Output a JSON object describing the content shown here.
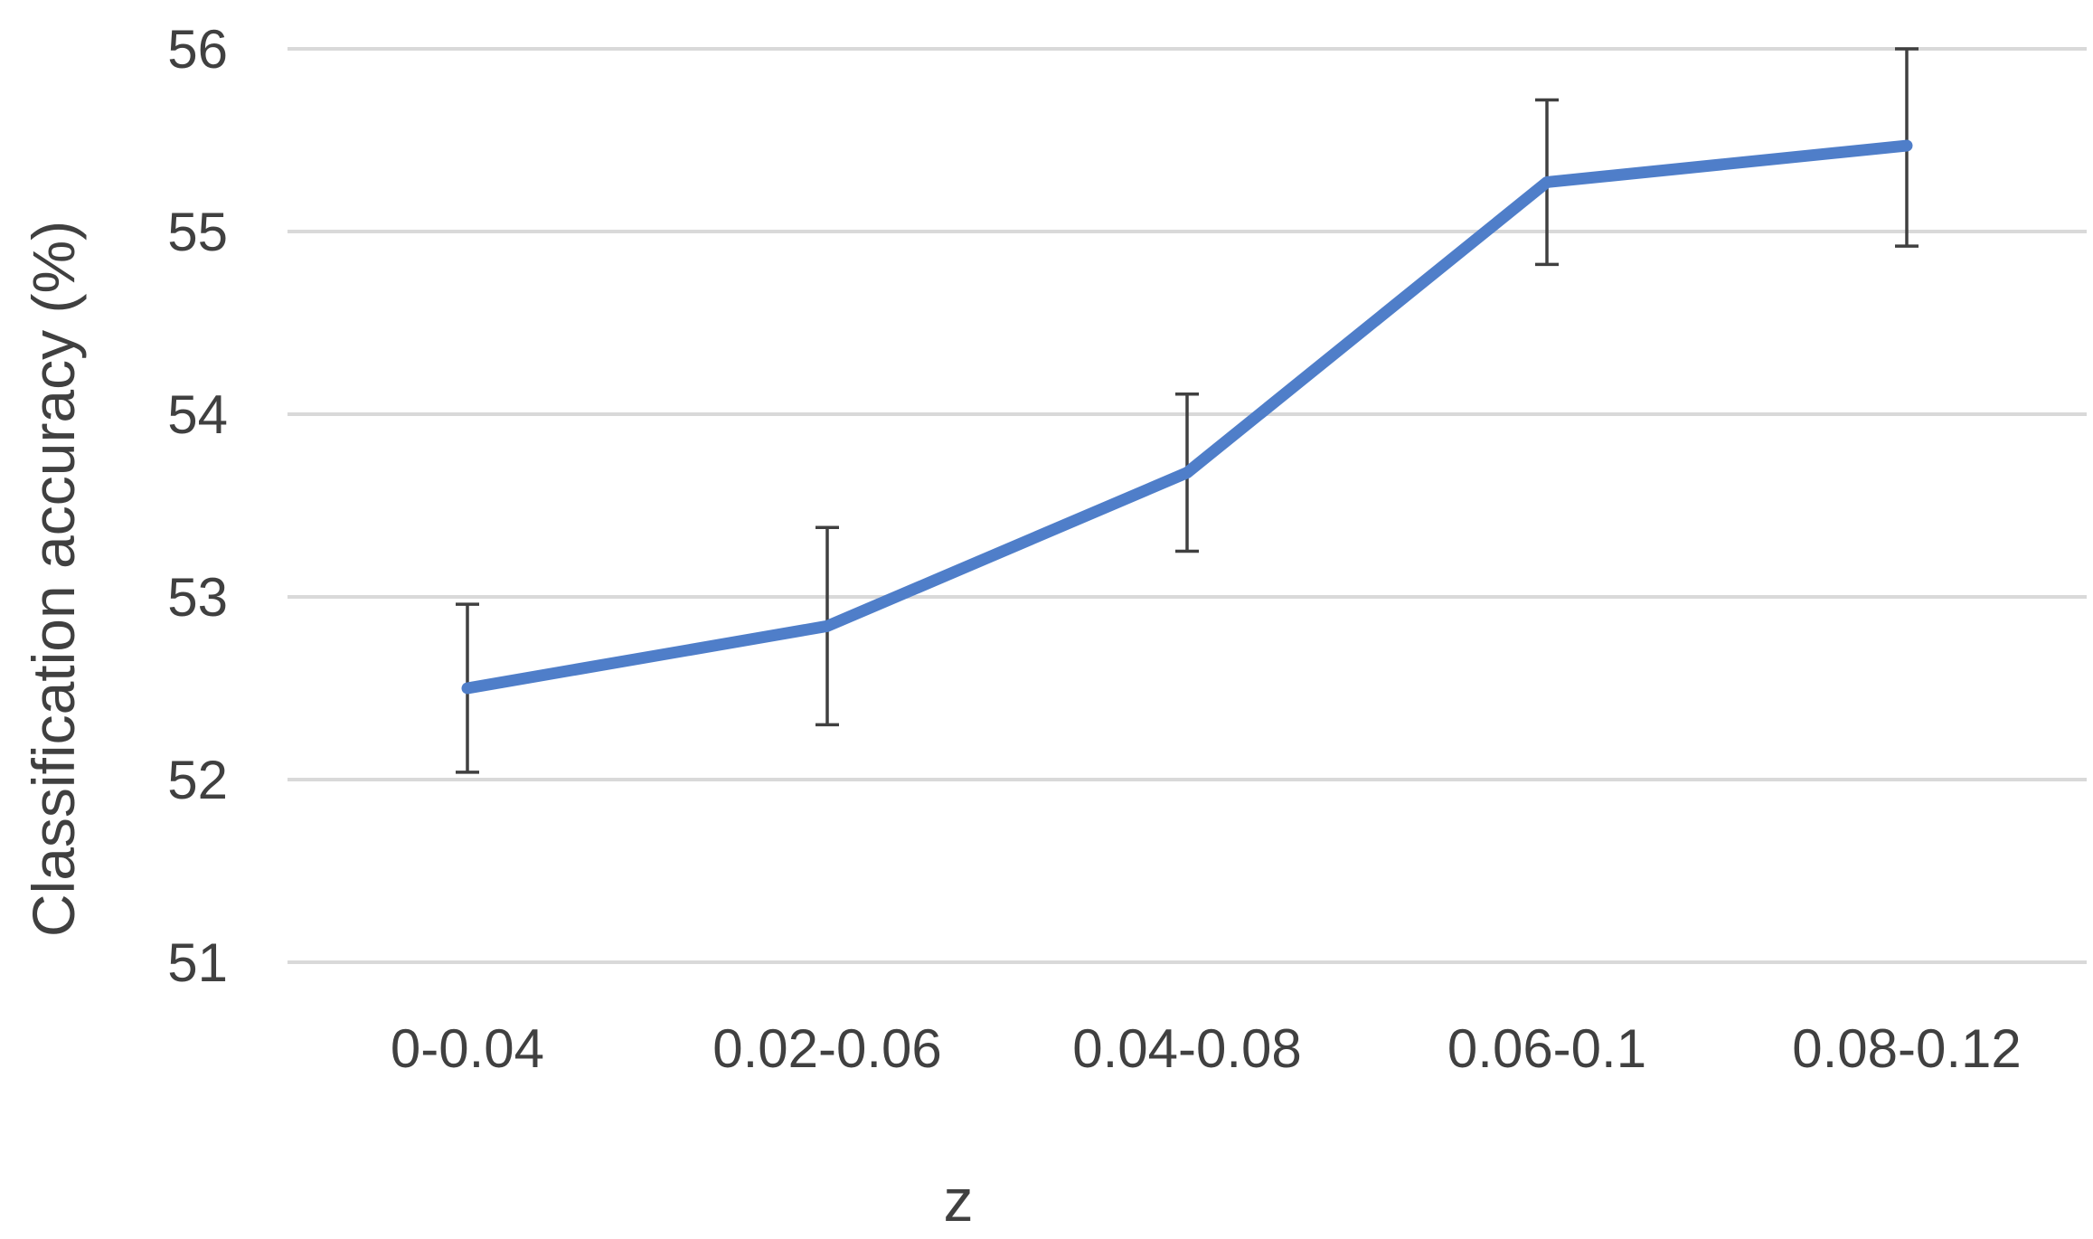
{
  "chart_data": {
    "type": "line",
    "title": "",
    "xlabel": "z",
    "ylabel": "Classification accuracy (%)",
    "categories": [
      "0-0.04",
      "0.02-0.06",
      "0.04-0.08",
      "0.06-0.1",
      "0.08-0.12"
    ],
    "ylim": [
      51,
      56
    ],
    "yticks": [
      51,
      52,
      53,
      54,
      55,
      56
    ],
    "grid": true,
    "legend": "none",
    "series": [
      {
        "values": [
          52.5,
          52.84,
          53.68,
          55.27,
          55.47
        ],
        "err_low": [
          52.04,
          52.3,
          53.25,
          54.82,
          54.92
        ],
        "err_high": [
          52.96,
          53.38,
          54.11,
          55.72,
          56.0
        ],
        "color": "#4f7ec9"
      }
    ],
    "colors": {
      "grid": "#d9d9d9",
      "errorbar": "#404040",
      "text": "#404040"
    }
  }
}
